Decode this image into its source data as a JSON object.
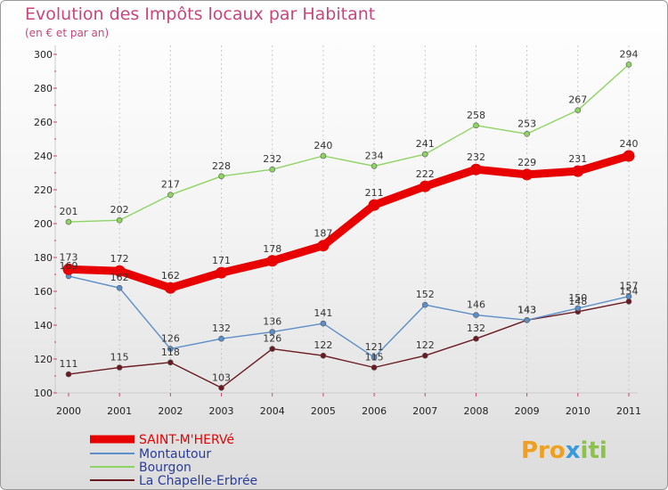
{
  "chart_data": {
    "type": "line",
    "title": "Evolution des Impôts locaux par Habitant",
    "subtitle": "(en € et par an)",
    "x": [
      "2000",
      "2001",
      "2002",
      "2003",
      "2004",
      "2005",
      "2006",
      "2007",
      "2008",
      "2009",
      "2010",
      "2011"
    ],
    "ylim": [
      100,
      300
    ],
    "yticks": [
      100,
      120,
      140,
      160,
      180,
      200,
      220,
      240,
      260,
      280,
      300
    ],
    "series": [
      {
        "name": "SAINT-M'HERVé",
        "color": "#e80000",
        "values": [
          173,
          172,
          162,
          171,
          178,
          187,
          211,
          222,
          232,
          229,
          231,
          240
        ],
        "labels": [
          "173",
          "172",
          "162",
          "171",
          "178",
          "187",
          "211",
          "222",
          "232",
          "229",
          "231",
          "240"
        ]
      },
      {
        "name": "Montautour",
        "color": "#5b8fc9",
        "values": [
          169,
          162,
          126,
          132,
          136,
          141,
          121,
          152,
          146,
          143,
          150,
          157
        ],
        "labels": [
          "169",
          "162",
          "126",
          "132",
          "136",
          "141",
          "121",
          "152",
          "146",
          "143",
          "150",
          "157"
        ]
      },
      {
        "name": "Bourgon",
        "color": "#8ed462",
        "values": [
          201,
          202,
          217,
          228,
          232,
          240,
          234,
          241,
          258,
          253,
          267,
          294
        ],
        "labels": [
          "201",
          "202",
          "217",
          "228",
          "232",
          "240",
          "234",
          "241",
          "258",
          "253",
          "267",
          "294"
        ]
      },
      {
        "name": "La Chapelle-Erbrée",
        "color": "#6b1a22",
        "values": [
          111,
          115,
          118,
          103,
          126,
          122,
          115,
          122,
          132,
          143,
          148,
          154
        ],
        "labels": [
          "111",
          "115",
          "118",
          "103",
          "126",
          "122",
          "115",
          "122",
          "132",
          "143",
          "148",
          "154"
        ]
      }
    ]
  },
  "logo": {
    "part1": "Pro",
    "part2": "x",
    "part3": "iti"
  }
}
